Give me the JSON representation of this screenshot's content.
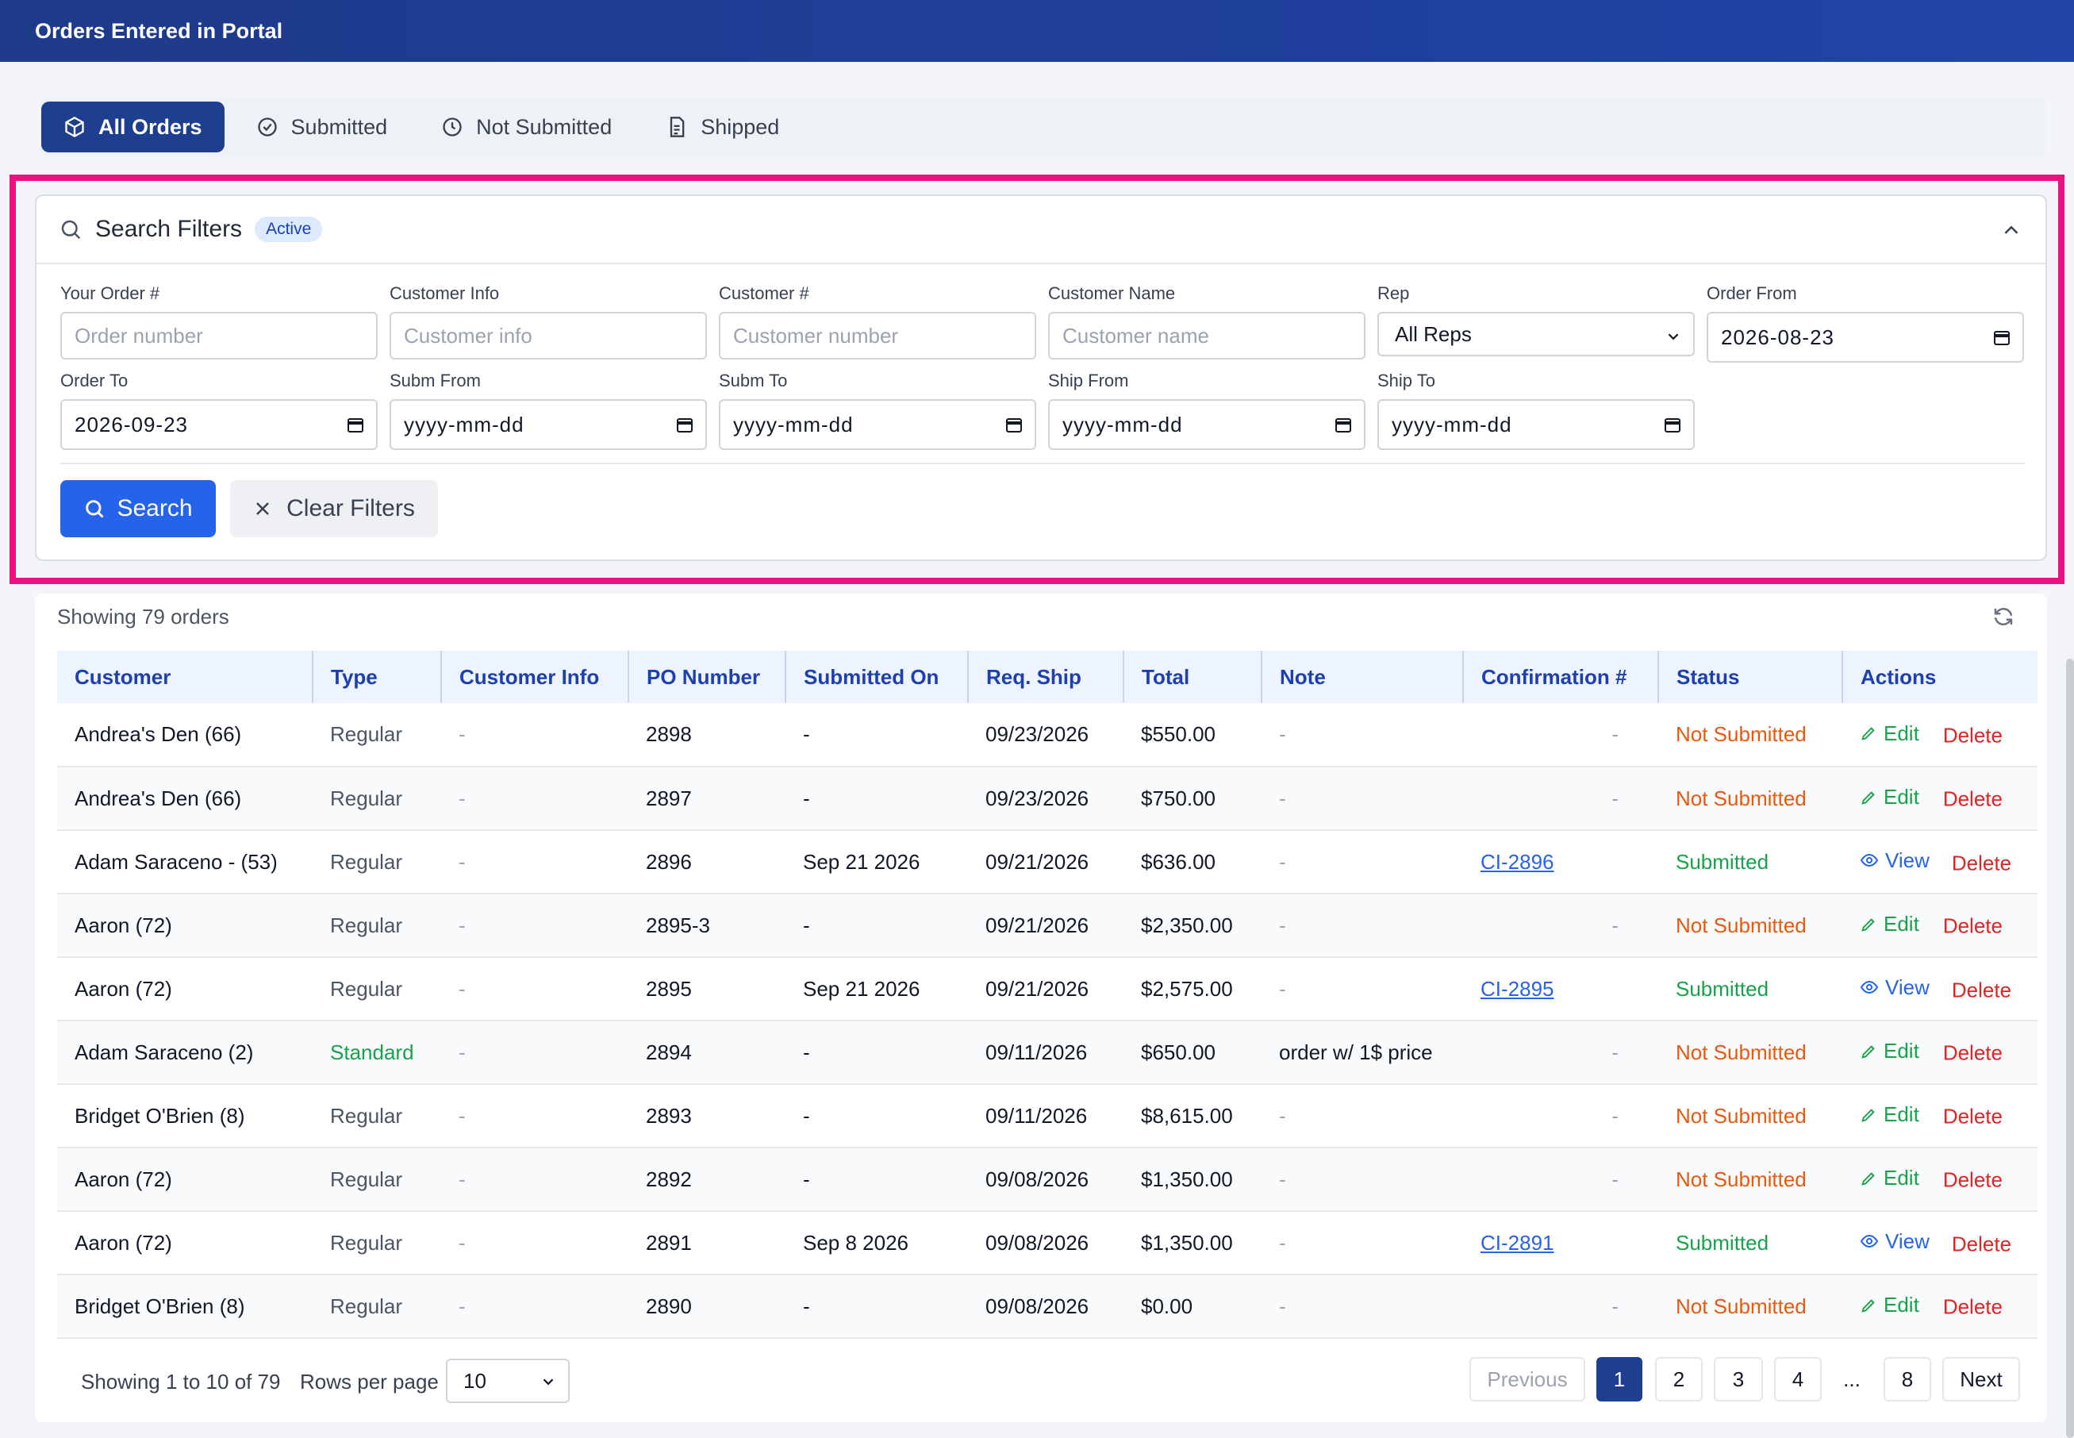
{
  "header": {
    "title": "Orders Entered in Portal"
  },
  "tabs": [
    {
      "label": "All Orders",
      "icon": "box-icon",
      "active": true
    },
    {
      "label": "Submitted",
      "icon": "check-circle-icon",
      "active": false
    },
    {
      "label": "Not Submitted",
      "icon": "clock-icon",
      "active": false
    },
    {
      "label": "Shipped",
      "icon": "document-icon",
      "active": false
    }
  ],
  "filters": {
    "title": "Search Filters",
    "badge": "Active",
    "your_order": {
      "label": "Your Order #",
      "placeholder": "Order number"
    },
    "customer_info": {
      "label": "Customer Info",
      "placeholder": "Customer info"
    },
    "customer_num": {
      "label": "Customer #",
      "placeholder": "Customer number"
    },
    "customer_name": {
      "label": "Customer Name",
      "placeholder": "Customer name"
    },
    "rep": {
      "label": "Rep",
      "value": "All Reps"
    },
    "order_from": {
      "label": "Order From",
      "value": "2026-08-23"
    },
    "order_to": {
      "label": "Order To",
      "value": "2026-09-23"
    },
    "subm_from": {
      "label": "Subm From",
      "value": "yyyy-mm-dd"
    },
    "subm_to": {
      "label": "Subm To",
      "value": "yyyy-mm-dd"
    },
    "ship_from": {
      "label": "Ship From",
      "value": "yyyy-mm-dd"
    },
    "ship_to": {
      "label": "Ship To",
      "value": "yyyy-mm-dd"
    },
    "search_label": "Search",
    "clear_label": "Clear Filters"
  },
  "results": {
    "showing": "Showing 79 orders",
    "columns": [
      "Customer",
      "Type",
      "Customer Info",
      "PO Number",
      "Submitted On",
      "Req. Ship",
      "Total",
      "Note",
      "Confirmation #",
      "Status",
      "Actions"
    ],
    "rows": [
      {
        "customer": "Andrea's Den (66)",
        "type": "Regular",
        "info": "-",
        "po": "2898",
        "submitted": "-",
        "req_ship": "09/23/2026",
        "total": "$550.00",
        "note": "-",
        "conf": "-",
        "status": "Not Submitted",
        "action": "Edit",
        "delete": "Delete"
      },
      {
        "customer": "Andrea's Den (66)",
        "type": "Regular",
        "info": "-",
        "po": "2897",
        "submitted": "-",
        "req_ship": "09/23/2026",
        "total": "$750.00",
        "note": "-",
        "conf": "-",
        "status": "Not Submitted",
        "action": "Edit",
        "delete": "Delete"
      },
      {
        "customer": "Adam Saraceno - (53)",
        "type": "Regular",
        "info": "-",
        "po": "2896",
        "submitted": "Sep 21 2026",
        "req_ship": "09/21/2026",
        "total": "$636.00",
        "note": "-",
        "conf": "CI-2896",
        "status": "Submitted",
        "action": "View",
        "delete": "Delete"
      },
      {
        "customer": "Aaron (72)",
        "type": "Regular",
        "info": "-",
        "po": "2895-3",
        "submitted": "-",
        "req_ship": "09/21/2026",
        "total": "$2,350.00",
        "note": "-",
        "conf": "-",
        "status": "Not Submitted",
        "action": "Edit",
        "delete": "Delete"
      },
      {
        "customer": "Aaron (72)",
        "type": "Regular",
        "info": "-",
        "po": "2895",
        "submitted": "Sep 21 2026",
        "req_ship": "09/21/2026",
        "total": "$2,575.00",
        "note": "-",
        "conf": "CI-2895",
        "status": "Submitted",
        "action": "View",
        "delete": "Delete"
      },
      {
        "customer": "Adam Saraceno (2)",
        "type": "Standard",
        "info": "-",
        "po": "2894",
        "submitted": "-",
        "req_ship": "09/11/2026",
        "total": "$650.00",
        "note": "order w/ 1$ price",
        "conf": "-",
        "status": "Not Submitted",
        "action": "Edit",
        "delete": "Delete"
      },
      {
        "customer": "Bridget O'Brien (8)",
        "type": "Regular",
        "info": "-",
        "po": "2893",
        "submitted": "-",
        "req_ship": "09/11/2026",
        "total": "$8,615.00",
        "note": "-",
        "conf": "-",
        "status": "Not Submitted",
        "action": "Edit",
        "delete": "Delete"
      },
      {
        "customer": "Aaron (72)",
        "type": "Regular",
        "info": "-",
        "po": "2892",
        "submitted": "-",
        "req_ship": "09/08/2026",
        "total": "$1,350.00",
        "note": "-",
        "conf": "-",
        "status": "Not Submitted",
        "action": "Edit",
        "delete": "Delete"
      },
      {
        "customer": "Aaron (72)",
        "type": "Regular",
        "info": "-",
        "po": "2891",
        "submitted": "Sep 8 2026",
        "req_ship": "09/08/2026",
        "total": "$1,350.00",
        "note": "-",
        "conf": "CI-2891",
        "status": "Submitted",
        "action": "View",
        "delete": "Delete"
      },
      {
        "customer": "Bridget O'Brien (8)",
        "type": "Regular",
        "info": "-",
        "po": "2890",
        "submitted": "-",
        "req_ship": "09/08/2026",
        "total": "$0.00",
        "note": "-",
        "conf": "-",
        "status": "Not Submitted",
        "action": "Edit",
        "delete": "Delete"
      }
    ]
  },
  "pagination": {
    "info": "Showing 1 to 10 of 79",
    "rows_per_page_label": "Rows per page",
    "rows_per_page": "10",
    "previous": "Previous",
    "pages": [
      "1",
      "2",
      "3",
      "4"
    ],
    "ellipsis": "...",
    "last": "8",
    "next": "Next",
    "current": "1"
  },
  "colors": {
    "header_bg": "#1e3a8a",
    "accent": "#2563eb",
    "highlight_border": "#e8117f",
    "status_submitted": "#16a34a",
    "status_not_submitted": "#ea580c",
    "delete": "#dc2626"
  }
}
